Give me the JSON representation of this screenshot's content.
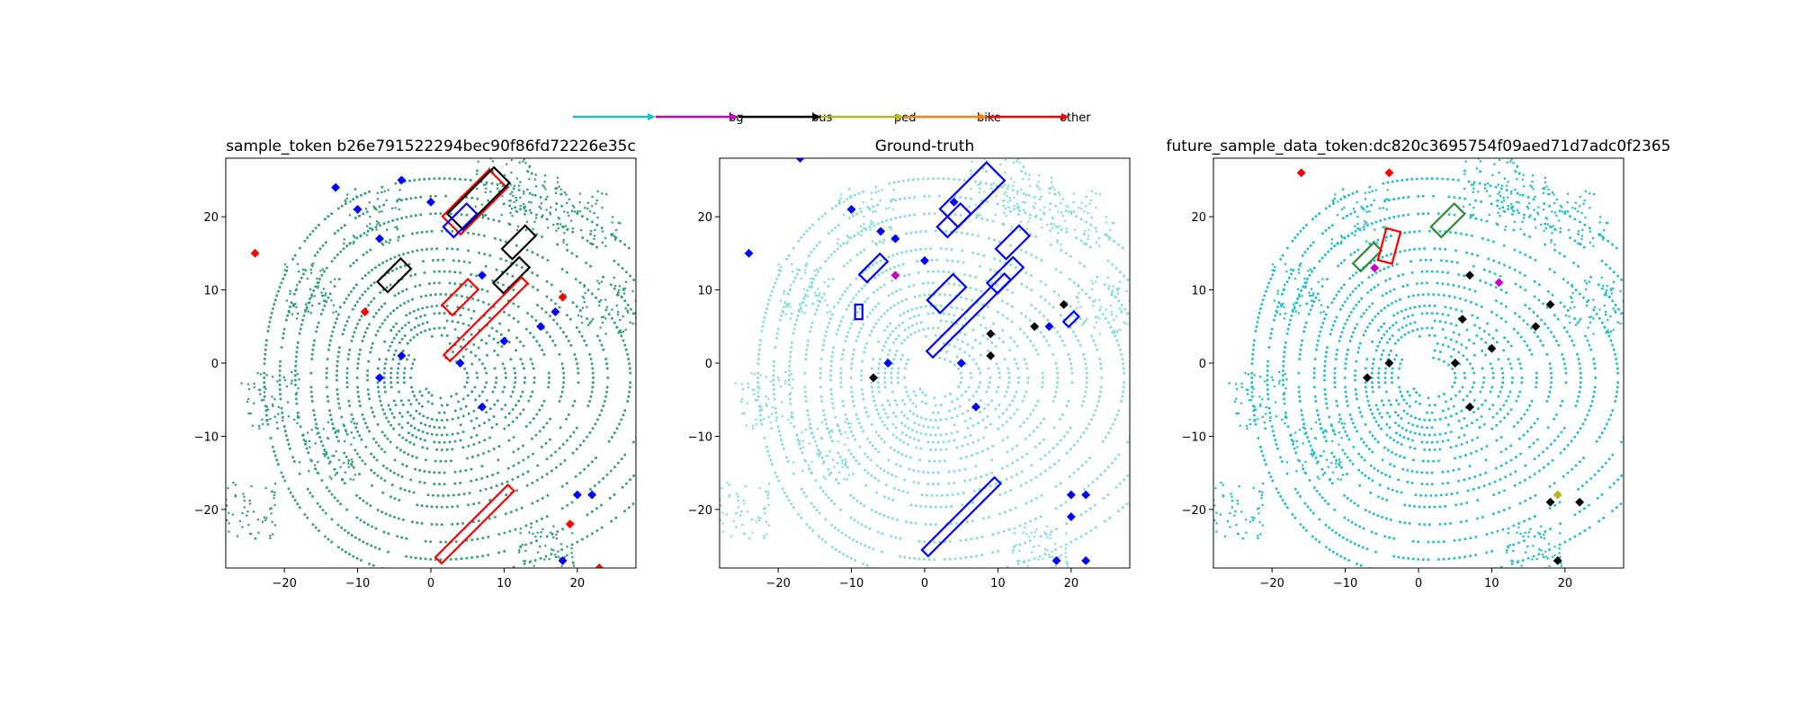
{
  "legend": {
    "items": [
      {
        "label": "bg",
        "color": "#17becf"
      },
      {
        "label": "bus",
        "color": "#c800c8"
      },
      {
        "label": "ped",
        "color": "#000000"
      },
      {
        "label": "bike",
        "color": "#b5b816"
      },
      {
        "label": "other",
        "color": "#ff7f0e"
      },
      {
        "label": "",
        "color": "#ff0000"
      }
    ]
  },
  "chart_data": [
    {
      "type": "scatter",
      "title": "sample_token b26e791522294bec90f86fd72226e35c",
      "xlim": [
        -28,
        28
      ],
      "ylim": [
        -28,
        28
      ],
      "xticks": [
        -20,
        -10,
        0,
        10,
        20
      ],
      "yticks": [
        -20,
        -10,
        0,
        10,
        20
      ],
      "point_color": "#2a9d7a",
      "boxes": [
        {
          "cx": 6,
          "cy": 22,
          "w": 3.5,
          "h": 9,
          "angle": 45,
          "color": "#ff0000"
        },
        {
          "cx": 6.5,
          "cy": 22.5,
          "w": 3,
          "h": 9,
          "angle": 45,
          "color": "#000000"
        },
        {
          "cx": 4,
          "cy": 19.5,
          "w": 2,
          "h": 4.5,
          "angle": 45,
          "color": "#0000ff"
        },
        {
          "cx": 12,
          "cy": 16.5,
          "w": 2,
          "h": 4.5,
          "angle": 45,
          "color": "#000000"
        },
        {
          "cx": -5,
          "cy": 12,
          "w": 2,
          "h": 4.5,
          "angle": 45,
          "color": "#000000"
        },
        {
          "cx": 4,
          "cy": 9,
          "w": 2,
          "h": 5,
          "angle": 45,
          "color": "#ff0000"
        },
        {
          "cx": 11,
          "cy": 12,
          "w": 2,
          "h": 5,
          "angle": 45,
          "color": "#000000"
        },
        {
          "cx": 7.5,
          "cy": 6,
          "w": 1.2,
          "h": 15,
          "angle": 45,
          "color": "#ff0000"
        },
        {
          "cx": 6,
          "cy": -22,
          "w": 1.2,
          "h": 14,
          "angle": 45,
          "color": "#ff0000"
        }
      ],
      "markers": [
        {
          "x": -24,
          "y": 15,
          "color": "#ff0000"
        },
        {
          "x": -13,
          "y": 24,
          "color": "#0000ff"
        },
        {
          "x": -10,
          "y": 21,
          "color": "#0000ff"
        },
        {
          "x": -7,
          "y": 17,
          "color": "#0000ff"
        },
        {
          "x": -4,
          "y": 25,
          "color": "#0000ff"
        },
        {
          "x": 0,
          "y": 22,
          "color": "#0000ff"
        },
        {
          "x": -9,
          "y": 7,
          "color": "#ff0000"
        },
        {
          "x": -7,
          "y": -2,
          "color": "#0000ff"
        },
        {
          "x": -4,
          "y": 1,
          "color": "#0000ff"
        },
        {
          "x": 4,
          "y": 0,
          "color": "#0000ff"
        },
        {
          "x": 7,
          "y": 12,
          "color": "#0000ff"
        },
        {
          "x": 17,
          "y": 7,
          "color": "#0000ff"
        },
        {
          "x": 18,
          "y": 9,
          "color": "#ff0000"
        },
        {
          "x": 15,
          "y": 5,
          "color": "#0000ff"
        },
        {
          "x": 10,
          "y": 3,
          "color": "#0000ff"
        },
        {
          "x": 7,
          "y": -6,
          "color": "#0000ff"
        },
        {
          "x": 20,
          "y": -18,
          "color": "#0000ff"
        },
        {
          "x": 19,
          "y": -22,
          "color": "#ff0000"
        },
        {
          "x": 22,
          "y": -18,
          "color": "#0000ff"
        },
        {
          "x": 18,
          "y": -27,
          "color": "#0000ff"
        },
        {
          "x": 23,
          "y": -28,
          "color": "#ff0000"
        }
      ]
    },
    {
      "type": "scatter",
      "title": "Ground-truth",
      "xlim": [
        -28,
        28
      ],
      "ylim": [
        -28,
        28
      ],
      "xticks": [
        -20,
        -10,
        0,
        10,
        20
      ],
      "yticks": [
        -20,
        -10,
        0,
        10,
        20
      ],
      "point_color": "#7fdcdc",
      "boxes": [
        {
          "cx": 6.5,
          "cy": 23,
          "w": 3.5,
          "h": 9,
          "angle": 45,
          "color": "#0000ff"
        },
        {
          "cx": 4,
          "cy": 19.5,
          "w": 2,
          "h": 4.5,
          "angle": 45,
          "color": "#0000ff"
        },
        {
          "cx": 12,
          "cy": 16.5,
          "w": 2,
          "h": 4.5,
          "angle": 45,
          "color": "#0000ff"
        },
        {
          "cx": 3,
          "cy": 9.5,
          "w": 2.5,
          "h": 5,
          "angle": 45,
          "color": "#0000ff"
        },
        {
          "cx": 11,
          "cy": 12,
          "w": 2,
          "h": 5,
          "angle": 45,
          "color": "#0000ff"
        },
        {
          "cx": 6,
          "cy": 6.5,
          "w": 1.2,
          "h": 15,
          "angle": 45,
          "color": "#0000ff"
        },
        {
          "cx": 5,
          "cy": -21,
          "w": 1.2,
          "h": 14,
          "angle": 45,
          "color": "#0000ff"
        },
        {
          "cx": -7,
          "cy": 13,
          "w": 1.5,
          "h": 4,
          "angle": 45,
          "color": "#0000ff"
        },
        {
          "cx": -9,
          "cy": 7,
          "w": 1,
          "h": 2,
          "angle": 0,
          "color": "#0000ff"
        },
        {
          "cx": 20,
          "cy": 6,
          "w": 1,
          "h": 2,
          "angle": 45,
          "color": "#0000ff"
        }
      ],
      "markers": [
        {
          "x": -24,
          "y": 15,
          "color": "#0000ff"
        },
        {
          "x": -17,
          "y": 28,
          "color": "#0000ff"
        },
        {
          "x": -10,
          "y": 21,
          "color": "#0000ff"
        },
        {
          "x": -6,
          "y": 18,
          "color": "#0000ff"
        },
        {
          "x": -4,
          "y": 17,
          "color": "#0000ff"
        },
        {
          "x": -4,
          "y": 12,
          "color": "#c800c8"
        },
        {
          "x": 0,
          "y": 14,
          "color": "#0000ff"
        },
        {
          "x": 4,
          "y": 22,
          "color": "#0000ff"
        },
        {
          "x": -7,
          "y": -2,
          "color": "#000000"
        },
        {
          "x": -5,
          "y": 0,
          "color": "#0000ff"
        },
        {
          "x": 5,
          "y": 0,
          "color": "#0000ff"
        },
        {
          "x": 9,
          "y": 1,
          "color": "#000000"
        },
        {
          "x": 9,
          "y": 4,
          "color": "#000000"
        },
        {
          "x": 15,
          "y": 5,
          "color": "#000000"
        },
        {
          "x": 17,
          "y": 5,
          "color": "#0000ff"
        },
        {
          "x": 19,
          "y": 8,
          "color": "#000000"
        },
        {
          "x": 7,
          "y": -6,
          "color": "#0000ff"
        },
        {
          "x": 20,
          "y": -18,
          "color": "#0000ff"
        },
        {
          "x": 22,
          "y": -18,
          "color": "#0000ff"
        },
        {
          "x": 20,
          "y": -21,
          "color": "#0000ff"
        },
        {
          "x": 18,
          "y": -27,
          "color": "#0000ff"
        },
        {
          "x": 22,
          "y": -27,
          "color": "#0000ff"
        }
      ]
    },
    {
      "type": "scatter",
      "title": "future_sample_data_token:dc820c3695754f09aed71d7adc0f2365",
      "xlim": [
        -28,
        28
      ],
      "ylim": [
        -28,
        28
      ],
      "xticks": [
        -20,
        -10,
        0,
        10,
        20
      ],
      "yticks": [
        -20,
        -10,
        0,
        10,
        20
      ],
      "point_color": "#17becf",
      "boxes": [
        {
          "cx": -7,
          "cy": 14.5,
          "w": 1.5,
          "h": 4,
          "angle": 45,
          "color": "#2e8b2e"
        },
        {
          "cx": -4,
          "cy": 16,
          "w": 2,
          "h": 4.5,
          "angle": 15,
          "color": "#ff0000"
        },
        {
          "cx": 4,
          "cy": 19.5,
          "w": 2,
          "h": 4.5,
          "angle": 45,
          "color": "#2e8b2e"
        }
      ],
      "markers": [
        {
          "x": -16,
          "y": 26,
          "color": "#ff0000"
        },
        {
          "x": -4,
          "y": 26,
          "color": "#ff0000"
        },
        {
          "x": -6,
          "y": 13,
          "color": "#c800c8"
        },
        {
          "x": 11,
          "y": 11,
          "color": "#c800c8"
        },
        {
          "x": 7,
          "y": 12,
          "color": "#000000"
        },
        {
          "x": 6,
          "y": 6,
          "color": "#000000"
        },
        {
          "x": 10,
          "y": 2,
          "color": "#000000"
        },
        {
          "x": 16,
          "y": 5,
          "color": "#000000"
        },
        {
          "x": 18,
          "y": 8,
          "color": "#000000"
        },
        {
          "x": -4,
          "y": 0,
          "color": "#000000"
        },
        {
          "x": -7,
          "y": -2,
          "color": "#000000"
        },
        {
          "x": 5,
          "y": 0,
          "color": "#000000"
        },
        {
          "x": 7,
          "y": -6,
          "color": "#000000"
        },
        {
          "x": 18,
          "y": -19,
          "color": "#000000"
        },
        {
          "x": 22,
          "y": -19,
          "color": "#000000"
        },
        {
          "x": 19,
          "y": -18,
          "color": "#b5b816"
        },
        {
          "x": 19,
          "y": -27,
          "color": "#000000"
        }
      ]
    }
  ]
}
